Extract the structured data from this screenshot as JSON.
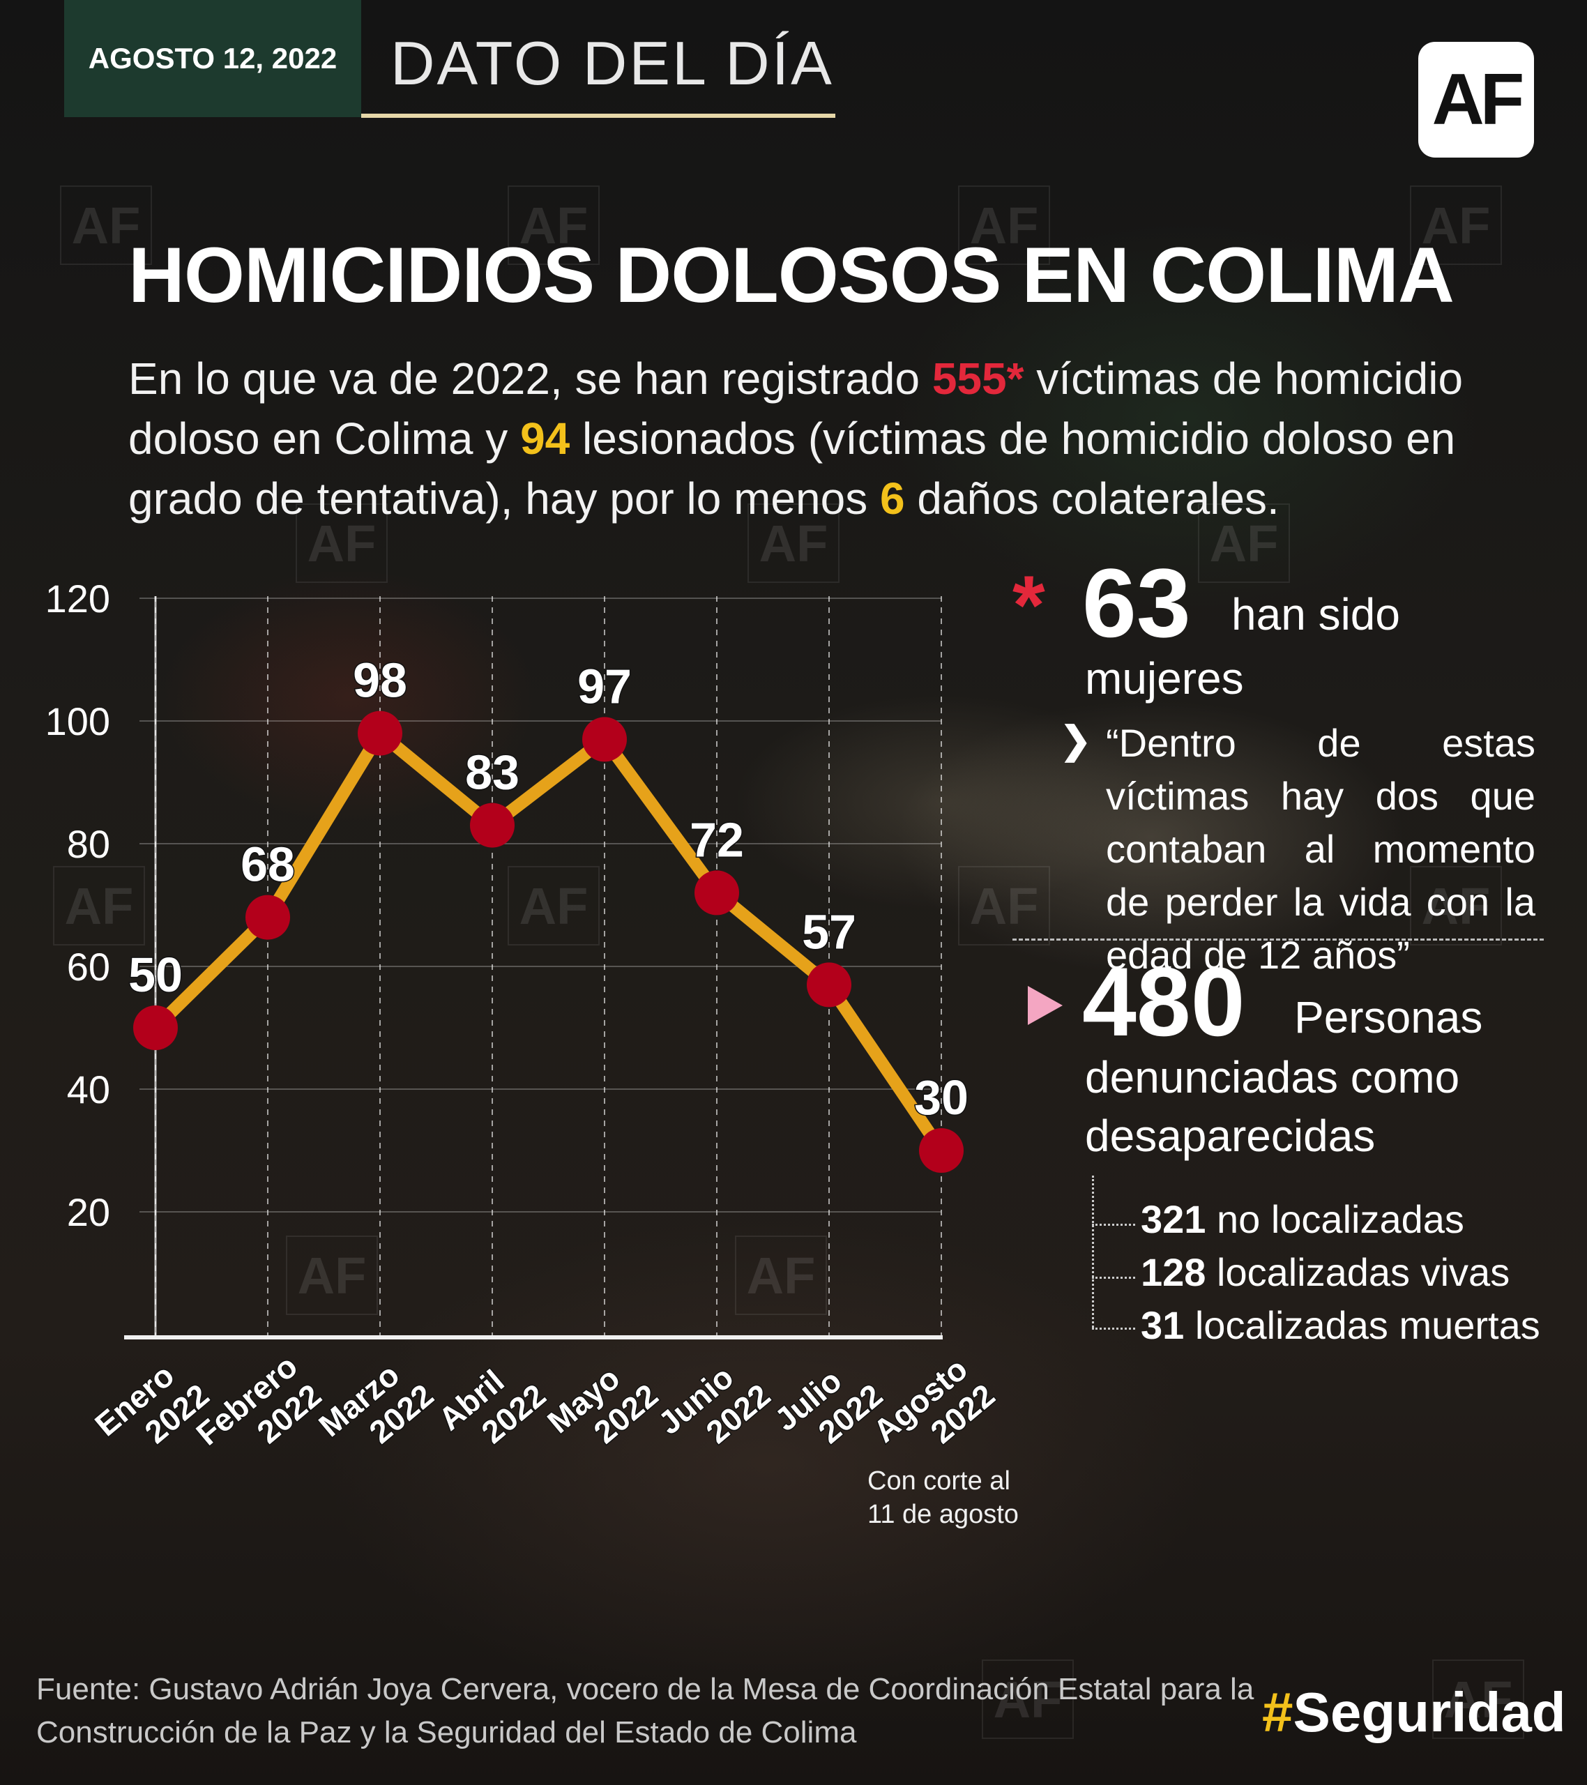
{
  "header": {
    "date": "AGOSTO 12, 2022",
    "section": "DATO DEL DÍA",
    "logo": "AF"
  },
  "title": "HOMICIDIOS DOLOSOS EN COLIMA",
  "intro": {
    "p1": "En lo que va de 2022, se han registrado ",
    "n1": "555*",
    "p2": " víctimas de homicidio doloso en Colima y ",
    "n2": "94",
    "p3": " lesionados (víctimas de homicidio doloso en grado de tentativa), hay por lo menos ",
    "n3": "6",
    "p4": " daños colaterales."
  },
  "chart_data": {
    "type": "line",
    "categories": [
      [
        "Enero",
        "2022"
      ],
      [
        "Febrero",
        "2022"
      ],
      [
        "Marzo",
        "2022"
      ],
      [
        "Abril",
        "2022"
      ],
      [
        "Mayo",
        "2022"
      ],
      [
        "Junio",
        "2022"
      ],
      [
        "Julio",
        "2022"
      ],
      [
        "Agosto",
        "2022"
      ]
    ],
    "values": [
      50,
      68,
      98,
      83,
      97,
      72,
      57,
      30
    ],
    "yticks": [
      20,
      40,
      60,
      80,
      100,
      120
    ],
    "ylim": [
      0,
      120
    ],
    "grid": "vertical dashed + horizontal",
    "line_color": "#e6a21a",
    "marker_color": "#b3001b"
  },
  "note": {
    "line1": "Con corte al",
    "line2": "11 de agosto"
  },
  "women": {
    "mark": "*",
    "number": "63",
    "text1": "han sido",
    "text2": "mujeres",
    "quote": "“Dentro de estas víctimas hay dos que contaban al momento de perder la vida con la edad de 12 años”"
  },
  "missing": {
    "number": "480",
    "text1": "Personas",
    "text2": "denunciadas como",
    "text3": "desaparecidas",
    "items": [
      {
        "num": "321",
        "label": "no localizadas"
      },
      {
        "num": "128",
        "label": "localizadas vivas"
      },
      {
        "num": "31",
        "label": "localizadas muertas"
      }
    ]
  },
  "source": "Fuente: Gustavo Adrián Joya Cervera, vocero de la Mesa de Coordinación Estatal para la Construcción de la Paz y la Seguridad del Estado de Colima",
  "hashtag": {
    "hash": "#",
    "word": "Seguridad"
  },
  "watermark": "AF",
  "colors": {
    "accent_red": "#e3283b",
    "accent_yellow": "#f3c11b",
    "header_green": "#1d3a2e"
  }
}
